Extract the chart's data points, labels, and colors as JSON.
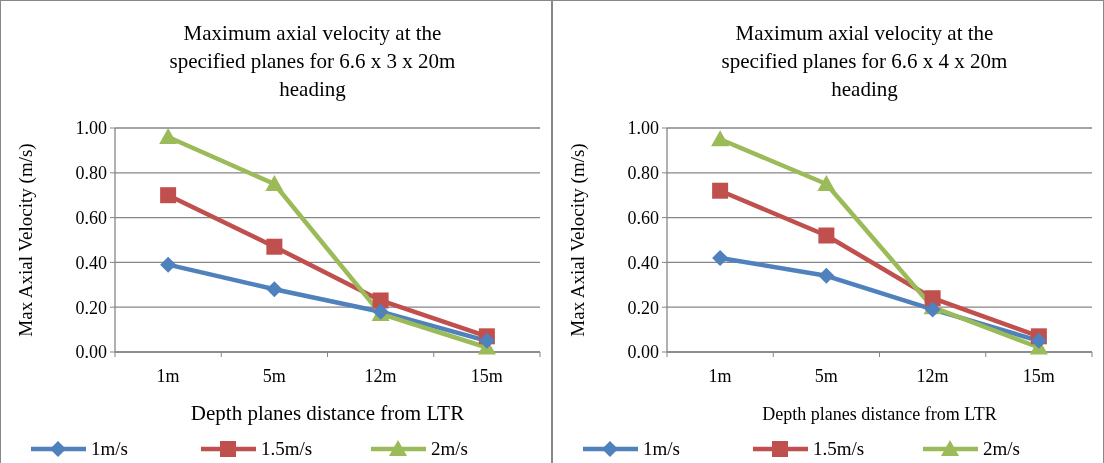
{
  "chart_data": [
    {
      "type": "line",
      "title": "Maximum axial velocity at the specified planes for 6.6 x 3 x 20m heading",
      "xlabel": "Depth planes distance from LTR",
      "ylabel": "Max Axial Velocity (m/s)",
      "categories": [
        "1m",
        "5m",
        "12m",
        "15m"
      ],
      "ylim": [
        0,
        1
      ],
      "yticks": [
        {
          "value": 0,
          "label": "0.00"
        },
        {
          "value": 0.2,
          "label": "0.20"
        },
        {
          "value": 0.4,
          "label": "0.40"
        },
        {
          "value": 0.6,
          "label": "0.60"
        },
        {
          "value": 0.8,
          "label": "0.80"
        },
        {
          "value": 1,
          "label": "1.00"
        }
      ],
      "grid": "y",
      "legend": "bottom",
      "series": [
        {
          "name": "1m/s",
          "color": "#4f81bd",
          "marker": "diamond",
          "values": [
            0.39,
            0.28,
            0.18,
            0.05
          ]
        },
        {
          "name": "1.5m/s",
          "color": "#c0504d",
          "marker": "square",
          "values": [
            0.7,
            0.47,
            0.23,
            0.07
          ]
        },
        {
          "name": "2m/s",
          "color": "#9bbb59",
          "marker": "triangle",
          "values": [
            0.96,
            0.75,
            0.17,
            0.02
          ]
        }
      ]
    },
    {
      "type": "line",
      "title": "Maximum axial velocity at the specified planes for 6.6 x 4 x 20m heading",
      "xlabel": "Depth planes distance from LTR",
      "ylabel": "Max Axial Velocity (m/s)",
      "categories": [
        "1m",
        "5m",
        "12m",
        "15m"
      ],
      "ylim": [
        0,
        1
      ],
      "yticks": [
        {
          "value": 0,
          "label": "0.00"
        },
        {
          "value": 0.2,
          "label": "0.20"
        },
        {
          "value": 0.4,
          "label": "0.40"
        },
        {
          "value": 0.6,
          "label": "0.60"
        },
        {
          "value": 0.8,
          "label": "0.80"
        },
        {
          "value": 1,
          "label": "1.00"
        }
      ],
      "grid": "y",
      "legend": "bottom",
      "series": [
        {
          "name": "1m/s",
          "color": "#4f81bd",
          "marker": "diamond",
          "values": [
            0.42,
            0.34,
            0.19,
            0.05
          ]
        },
        {
          "name": "1.5m/s",
          "color": "#c0504d",
          "marker": "square",
          "values": [
            0.72,
            0.52,
            0.24,
            0.07
          ]
        },
        {
          "name": "2m/s",
          "color": "#9bbb59",
          "marker": "triangle",
          "values": [
            0.95,
            0.75,
            0.2,
            0.02
          ]
        }
      ]
    }
  ]
}
